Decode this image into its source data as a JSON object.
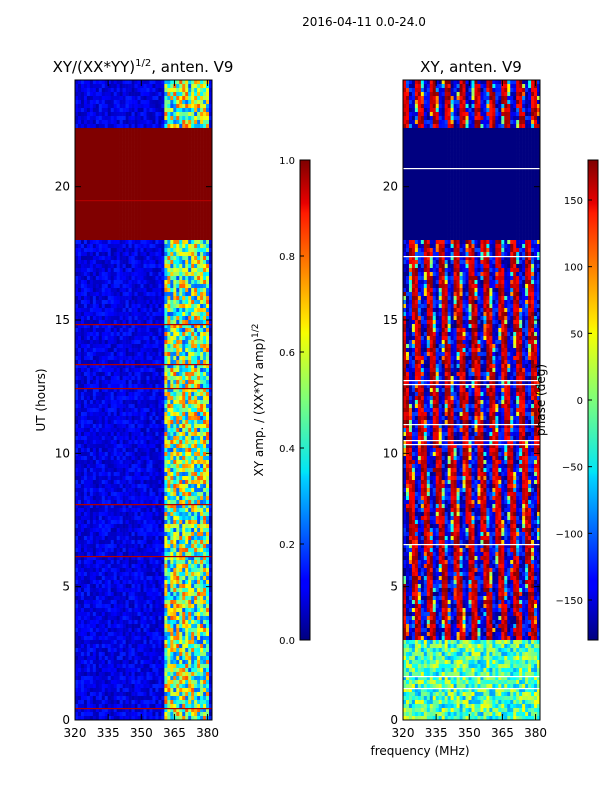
{
  "figure": {
    "suptitle": "2016-04-11 0.0-24.0",
    "xlabel": "frequency (MHz)"
  },
  "chart_data": [
    {
      "type": "heatmap",
      "id": "amp",
      "title_main": "XY/(XX*YY)",
      "title_sup": "1/2",
      "title_suffix": ", anten. V9",
      "ylabel": "UT (hours)",
      "xlim": [
        320,
        382
      ],
      "ylim": [
        0,
        24
      ],
      "xticks": [
        320,
        335,
        350,
        365,
        380
      ],
      "yticks": [
        0,
        5,
        10,
        15,
        20
      ],
      "colorbar": {
        "label_main": "XY amp. / (XX*YY amp)",
        "label_sup": "1/2",
        "range": [
          0.0,
          1.0
        ],
        "ticks": [
          "0.0",
          "0.2",
          "0.4",
          "0.6",
          "0.8",
          "1.0"
        ],
        "colormap": "jet"
      },
      "saturated_band_hours": [
        18.0,
        22.2
      ],
      "high_band_mhz": [
        360,
        381
      ],
      "typical_value": 0.1,
      "high_band_value": 0.5
    },
    {
      "type": "heatmap",
      "id": "phase",
      "title_main": "XY, anten. V9",
      "ylabel": "phase (deg)",
      "xlim": [
        320,
        382
      ],
      "ylim": [
        0,
        24
      ],
      "xticks": [
        320,
        335,
        350,
        365,
        380
      ],
      "yticks": [
        0,
        5,
        10,
        15,
        20
      ],
      "colorbar": {
        "label_main": "phase (deg)",
        "range": [
          -180,
          180
        ],
        "ticks": [
          "150",
          "100",
          "50",
          "0",
          "−50",
          "−100",
          "−150"
        ],
        "tick_values": [
          150,
          100,
          50,
          0,
          -50,
          -100,
          -150
        ],
        "colormap": "jet"
      },
      "flat_band_hours": [
        18.0,
        22.2
      ],
      "flat_value_deg": -180
    }
  ]
}
